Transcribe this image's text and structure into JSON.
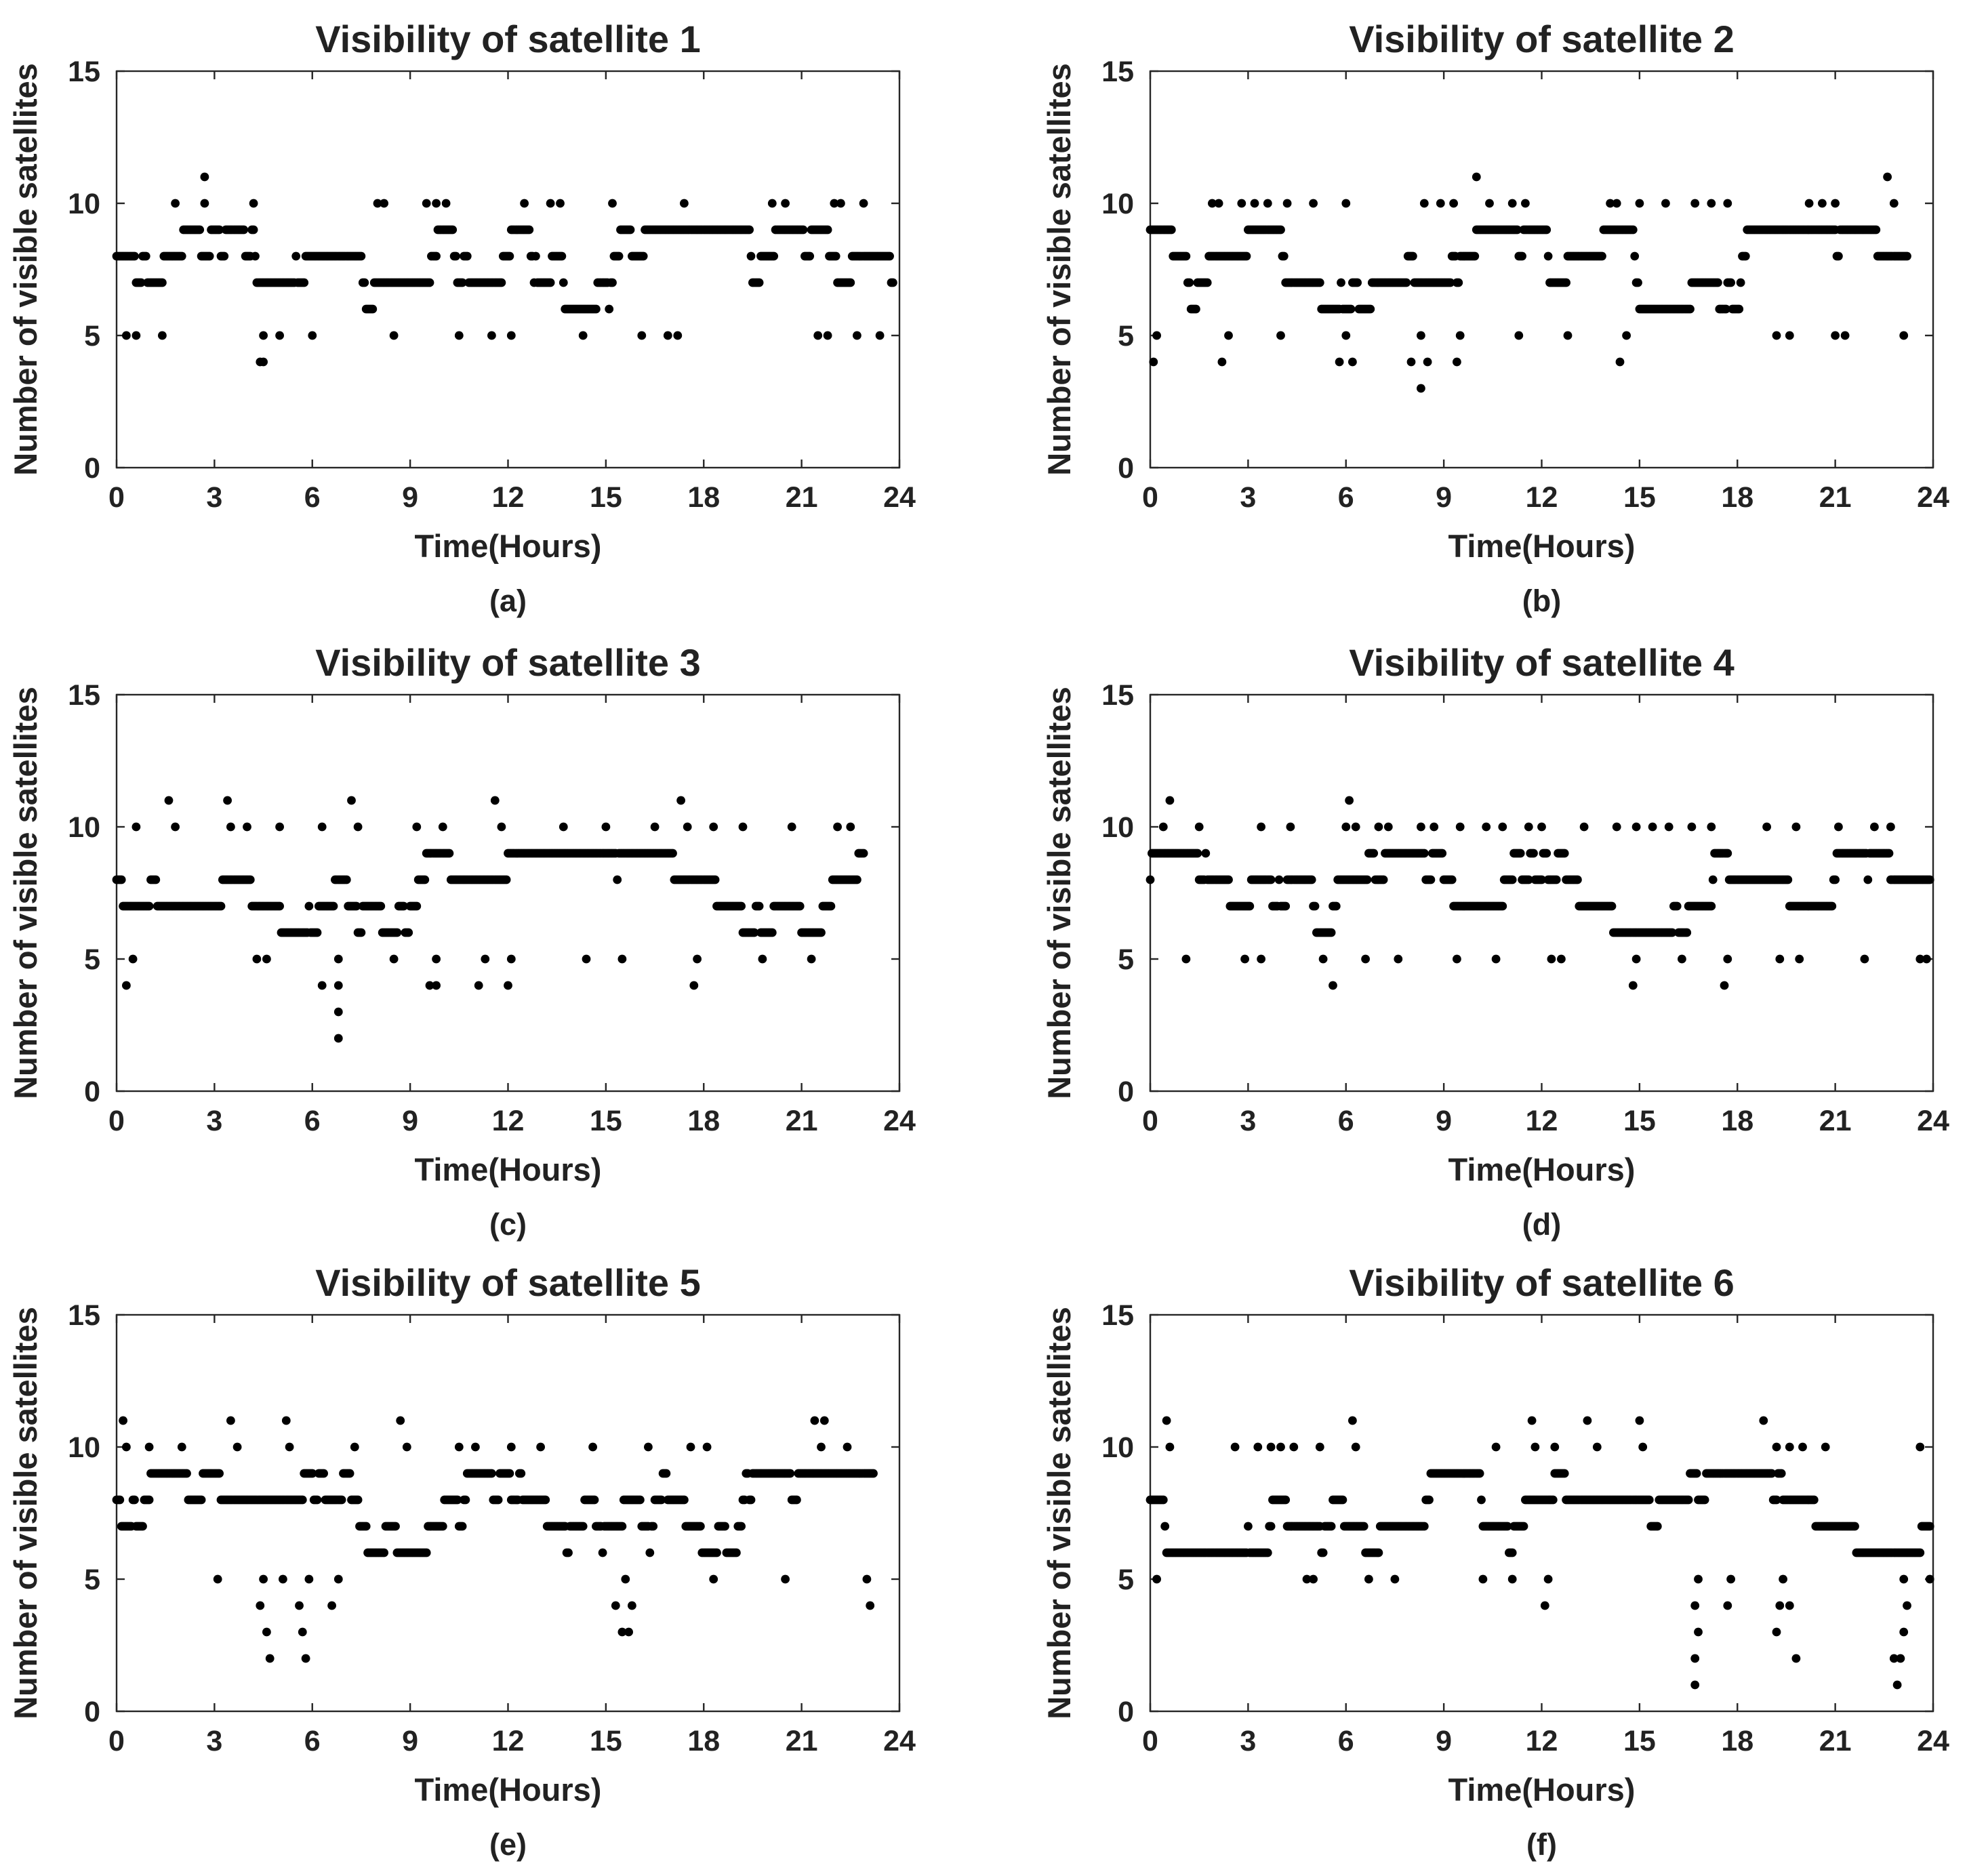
{
  "figure": {
    "marker_color": "#000000",
    "axis_color": "#262626",
    "x_ticks": [
      "0",
      "3",
      "6",
      "9",
      "12",
      "15",
      "18",
      "21",
      "24"
    ],
    "y_ticks": [
      "0",
      "5",
      "10",
      "15"
    ]
  },
  "chart_data": [
    {
      "type": "scatter",
      "title": "Visibility of satellite 1",
      "xlabel": "Time(Hours)",
      "ylabel": "Number of visible satellites",
      "caption": "(a)",
      "xlim": [
        0,
        24
      ],
      "ylim": [
        0,
        15
      ],
      "grid": false,
      "x_end": 23.8,
      "typical_range": [
        6,
        9
      ],
      "points_extra": [
        [
          1.8,
          10
        ],
        [
          2.7,
          11
        ],
        [
          2.7,
          10
        ],
        [
          4.2,
          10
        ],
        [
          4.5,
          4
        ],
        [
          4.4,
          4
        ],
        [
          8.0,
          10
        ],
        [
          8.2,
          10
        ],
        [
          9.5,
          10
        ],
        [
          9.8,
          10
        ],
        [
          10.1,
          10
        ],
        [
          12.5,
          10
        ],
        [
          13.3,
          10
        ],
        [
          13.6,
          10
        ],
        [
          15.2,
          10
        ],
        [
          17.4,
          10
        ],
        [
          20.1,
          10
        ],
        [
          20.5,
          10
        ],
        [
          22.0,
          10
        ],
        [
          22.2,
          10
        ],
        [
          22.9,
          10
        ],
        [
          0.3,
          5
        ],
        [
          0.6,
          5
        ],
        [
          1.4,
          5
        ],
        [
          4.5,
          5
        ],
        [
          5.0,
          5
        ],
        [
          6.0,
          5
        ],
        [
          8.5,
          5
        ],
        [
          10.5,
          5
        ],
        [
          11.5,
          5
        ],
        [
          12.1,
          5
        ],
        [
          14.3,
          5
        ],
        [
          16.1,
          5
        ],
        [
          16.9,
          5
        ],
        [
          17.2,
          5
        ],
        [
          21.5,
          5
        ],
        [
          21.8,
          5
        ],
        [
          22.7,
          5
        ],
        [
          23.4,
          5
        ]
      ]
    },
    {
      "type": "scatter",
      "title": "Visibility of satellite 2",
      "xlabel": "Time(Hours)",
      "ylabel": "Number of visible satellites",
      "caption": "(b)",
      "xlim": [
        0,
        24
      ],
      "ylim": [
        0,
        15
      ],
      "grid": false,
      "x_end": 23.2,
      "typical_range": [
        6,
        9
      ],
      "points_extra": [
        [
          1.9,
          10
        ],
        [
          2.1,
          10
        ],
        [
          2.8,
          10
        ],
        [
          3.2,
          10
        ],
        [
          3.6,
          10
        ],
        [
          4.2,
          10
        ],
        [
          5.0,
          10
        ],
        [
          6.0,
          10
        ],
        [
          8.4,
          10
        ],
        [
          8.9,
          10
        ],
        [
          9.3,
          10
        ],
        [
          10.0,
          11
        ],
        [
          10.4,
          10
        ],
        [
          11.1,
          10
        ],
        [
          11.5,
          10
        ],
        [
          14.1,
          10
        ],
        [
          14.3,
          10
        ],
        [
          15.0,
          10
        ],
        [
          15.8,
          10
        ],
        [
          16.7,
          10
        ],
        [
          17.2,
          10
        ],
        [
          17.7,
          10
        ],
        [
          20.2,
          10
        ],
        [
          20.6,
          10
        ],
        [
          21.0,
          10
        ],
        [
          22.6,
          11
        ],
        [
          22.8,
          10
        ],
        [
          0.1,
          4
        ],
        [
          0.2,
          5
        ],
        [
          2.2,
          4
        ],
        [
          2.4,
          5
        ],
        [
          4.0,
          5
        ],
        [
          5.8,
          4
        ],
        [
          6.0,
          5
        ],
        [
          6.2,
          4
        ],
        [
          8.0,
          4
        ],
        [
          8.3,
          3
        ],
        [
          8.5,
          4
        ],
        [
          8.3,
          5
        ],
        [
          9.4,
          4
        ],
        [
          9.5,
          5
        ],
        [
          11.3,
          5
        ],
        [
          12.8,
          5
        ],
        [
          14.4,
          4
        ],
        [
          14.6,
          5
        ],
        [
          19.2,
          5
        ],
        [
          19.6,
          5
        ],
        [
          21.0,
          5
        ],
        [
          21.3,
          5
        ],
        [
          23.1,
          5
        ]
      ]
    },
    {
      "type": "scatter",
      "title": "Visibility of satellite 3",
      "xlabel": "Time(Hours)",
      "ylabel": "Number of visible satellites",
      "caption": "(c)",
      "xlim": [
        0,
        24
      ],
      "ylim": [
        0,
        15
      ],
      "grid": false,
      "x_end": 22.9,
      "typical_range": [
        6,
        9
      ],
      "points_extra": [
        [
          0.6,
          10
        ],
        [
          1.6,
          11
        ],
        [
          1.8,
          10
        ],
        [
          3.4,
          11
        ],
        [
          3.5,
          10
        ],
        [
          4.0,
          10
        ],
        [
          5.0,
          10
        ],
        [
          6.3,
          10
        ],
        [
          7.2,
          11
        ],
        [
          7.4,
          10
        ],
        [
          9.2,
          10
        ],
        [
          10.0,
          10
        ],
        [
          11.6,
          11
        ],
        [
          11.8,
          10
        ],
        [
          13.7,
          10
        ],
        [
          15.0,
          10
        ],
        [
          16.5,
          10
        ],
        [
          17.3,
          11
        ],
        [
          17.5,
          10
        ],
        [
          18.3,
          10
        ],
        [
          19.2,
          10
        ],
        [
          20.7,
          10
        ],
        [
          22.1,
          10
        ],
        [
          22.5,
          10
        ],
        [
          0.3,
          4
        ],
        [
          0.5,
          5
        ],
        [
          4.3,
          5
        ],
        [
          4.6,
          5
        ],
        [
          6.3,
          4
        ],
        [
          6.8,
          2
        ],
        [
          6.8,
          3
        ],
        [
          6.8,
          4
        ],
        [
          6.8,
          5
        ],
        [
          8.5,
          5
        ],
        [
          9.6,
          4
        ],
        [
          9.8,
          4
        ],
        [
          9.8,
          5
        ],
        [
          11.1,
          4
        ],
        [
          11.3,
          5
        ],
        [
          12.0,
          4
        ],
        [
          12.1,
          5
        ],
        [
          14.4,
          5
        ],
        [
          15.5,
          5
        ],
        [
          17.7,
          4
        ],
        [
          17.8,
          5
        ],
        [
          19.8,
          5
        ],
        [
          21.3,
          5
        ]
      ]
    },
    {
      "type": "scatter",
      "title": "Visibility of satellite 4",
      "xlabel": "Time(Hours)",
      "ylabel": "Number of visible satellites",
      "caption": "(d)",
      "xlim": [
        0,
        24
      ],
      "ylim": [
        0,
        15
      ],
      "grid": false,
      "x_end": 23.9,
      "typical_range": [
        6,
        9
      ],
      "points_extra": [
        [
          0.4,
          10
        ],
        [
          0.6,
          11
        ],
        [
          1.5,
          10
        ],
        [
          3.4,
          10
        ],
        [
          4.3,
          10
        ],
        [
          6.0,
          10
        ],
        [
          6.1,
          11
        ],
        [
          6.3,
          10
        ],
        [
          7.0,
          10
        ],
        [
          7.3,
          10
        ],
        [
          8.3,
          10
        ],
        [
          8.7,
          10
        ],
        [
          9.5,
          10
        ],
        [
          10.3,
          10
        ],
        [
          10.8,
          10
        ],
        [
          11.6,
          10
        ],
        [
          12.0,
          10
        ],
        [
          13.3,
          10
        ],
        [
          14.3,
          10
        ],
        [
          14.9,
          10
        ],
        [
          15.4,
          10
        ],
        [
          15.9,
          10
        ],
        [
          16.6,
          10
        ],
        [
          17.2,
          10
        ],
        [
          18.9,
          10
        ],
        [
          19.8,
          10
        ],
        [
          21.1,
          10
        ],
        [
          22.2,
          10
        ],
        [
          22.7,
          10
        ],
        [
          1.1,
          5
        ],
        [
          2.9,
          5
        ],
        [
          3.4,
          5
        ],
        [
          5.3,
          5
        ],
        [
          5.6,
          4
        ],
        [
          6.6,
          5
        ],
        [
          7.6,
          5
        ],
        [
          9.4,
          5
        ],
        [
          10.6,
          5
        ],
        [
          12.3,
          5
        ],
        [
          12.6,
          5
        ],
        [
          14.8,
          4
        ],
        [
          14.9,
          5
        ],
        [
          16.3,
          5
        ],
        [
          17.6,
          4
        ],
        [
          17.7,
          5
        ],
        [
          19.3,
          5
        ],
        [
          19.9,
          5
        ],
        [
          21.9,
          5
        ],
        [
          23.6,
          5
        ],
        [
          23.8,
          5
        ]
      ]
    },
    {
      "type": "scatter",
      "title": "Visibility of satellite 5",
      "xlabel": "Time(Hours)",
      "ylabel": "Number of visible satellites",
      "caption": "(e)",
      "xlim": [
        0,
        24
      ],
      "ylim": [
        0,
        15
      ],
      "grid": false,
      "x_end": 23.2,
      "typical_range": [
        6,
        9
      ],
      "points_extra": [
        [
          0.2,
          11
        ],
        [
          0.3,
          10
        ],
        [
          1.0,
          10
        ],
        [
          2.0,
          10
        ],
        [
          3.5,
          11
        ],
        [
          3.7,
          10
        ],
        [
          5.2,
          11
        ],
        [
          5.3,
          10
        ],
        [
          7.3,
          10
        ],
        [
          8.7,
          11
        ],
        [
          8.9,
          10
        ],
        [
          10.5,
          10
        ],
        [
          11.0,
          10
        ],
        [
          12.1,
          10
        ],
        [
          13.0,
          10
        ],
        [
          14.6,
          10
        ],
        [
          16.3,
          10
        ],
        [
          17.6,
          10
        ],
        [
          18.1,
          10
        ],
        [
          21.4,
          11
        ],
        [
          21.7,
          11
        ],
        [
          21.6,
          10
        ],
        [
          22.4,
          10
        ],
        [
          3.1,
          5
        ],
        [
          4.4,
          4
        ],
        [
          4.6,
          3
        ],
        [
          4.7,
          2
        ],
        [
          4.5,
          5
        ],
        [
          5.1,
          5
        ],
        [
          5.6,
          4
        ],
        [
          5.7,
          3
        ],
        [
          5.8,
          2
        ],
        [
          5.9,
          5
        ],
        [
          6.6,
          4
        ],
        [
          6.8,
          5
        ],
        [
          15.3,
          4
        ],
        [
          15.5,
          3
        ],
        [
          15.7,
          3
        ],
        [
          15.8,
          4
        ],
        [
          15.6,
          5
        ],
        [
          18.3,
          5
        ],
        [
          20.5,
          5
        ],
        [
          23.0,
          5
        ],
        [
          23.1,
          4
        ]
      ]
    },
    {
      "type": "scatter",
      "title": "Visibility of satellite 6",
      "xlabel": "Time(Hours)",
      "ylabel": "Number of visible satellites",
      "caption": "(f)",
      "xlim": [
        0,
        24
      ],
      "ylim": [
        0,
        15
      ],
      "grid": false,
      "x_end": 23.9,
      "typical_range": [
        6,
        9
      ],
      "points_extra": [
        [
          0.5,
          11
        ],
        [
          0.6,
          10
        ],
        [
          2.6,
          10
        ],
        [
          3.3,
          10
        ],
        [
          3.7,
          10
        ],
        [
          4.0,
          10
        ],
        [
          4.4,
          10
        ],
        [
          5.2,
          10
        ],
        [
          6.2,
          11
        ],
        [
          6.3,
          10
        ],
        [
          10.6,
          10
        ],
        [
          11.7,
          11
        ],
        [
          11.8,
          10
        ],
        [
          12.4,
          10
        ],
        [
          13.4,
          11
        ],
        [
          13.7,
          10
        ],
        [
          15.0,
          11
        ],
        [
          15.1,
          10
        ],
        [
          18.8,
          11
        ],
        [
          19.2,
          10
        ],
        [
          19.6,
          10
        ],
        [
          20.0,
          10
        ],
        [
          20.7,
          10
        ],
        [
          23.6,
          10
        ],
        [
          0.2,
          5
        ],
        [
          4.8,
          5
        ],
        [
          5.0,
          5
        ],
        [
          6.7,
          5
        ],
        [
          7.5,
          5
        ],
        [
          10.2,
          5
        ],
        [
          11.1,
          5
        ],
        [
          12.1,
          4
        ],
        [
          12.2,
          5
        ],
        [
          16.7,
          1
        ],
        [
          16.7,
          2
        ],
        [
          16.8,
          3
        ],
        [
          16.7,
          4
        ],
        [
          16.8,
          5
        ],
        [
          17.7,
          4
        ],
        [
          17.8,
          5
        ],
        [
          19.2,
          3
        ],
        [
          19.3,
          4
        ],
        [
          19.6,
          4
        ],
        [
          19.8,
          2
        ],
        [
          19.4,
          5
        ],
        [
          22.8,
          2
        ],
        [
          22.9,
          1
        ],
        [
          23.0,
          2
        ],
        [
          23.1,
          3
        ],
        [
          23.2,
          4
        ],
        [
          23.1,
          5
        ],
        [
          23.9,
          5
        ]
      ]
    }
  ]
}
